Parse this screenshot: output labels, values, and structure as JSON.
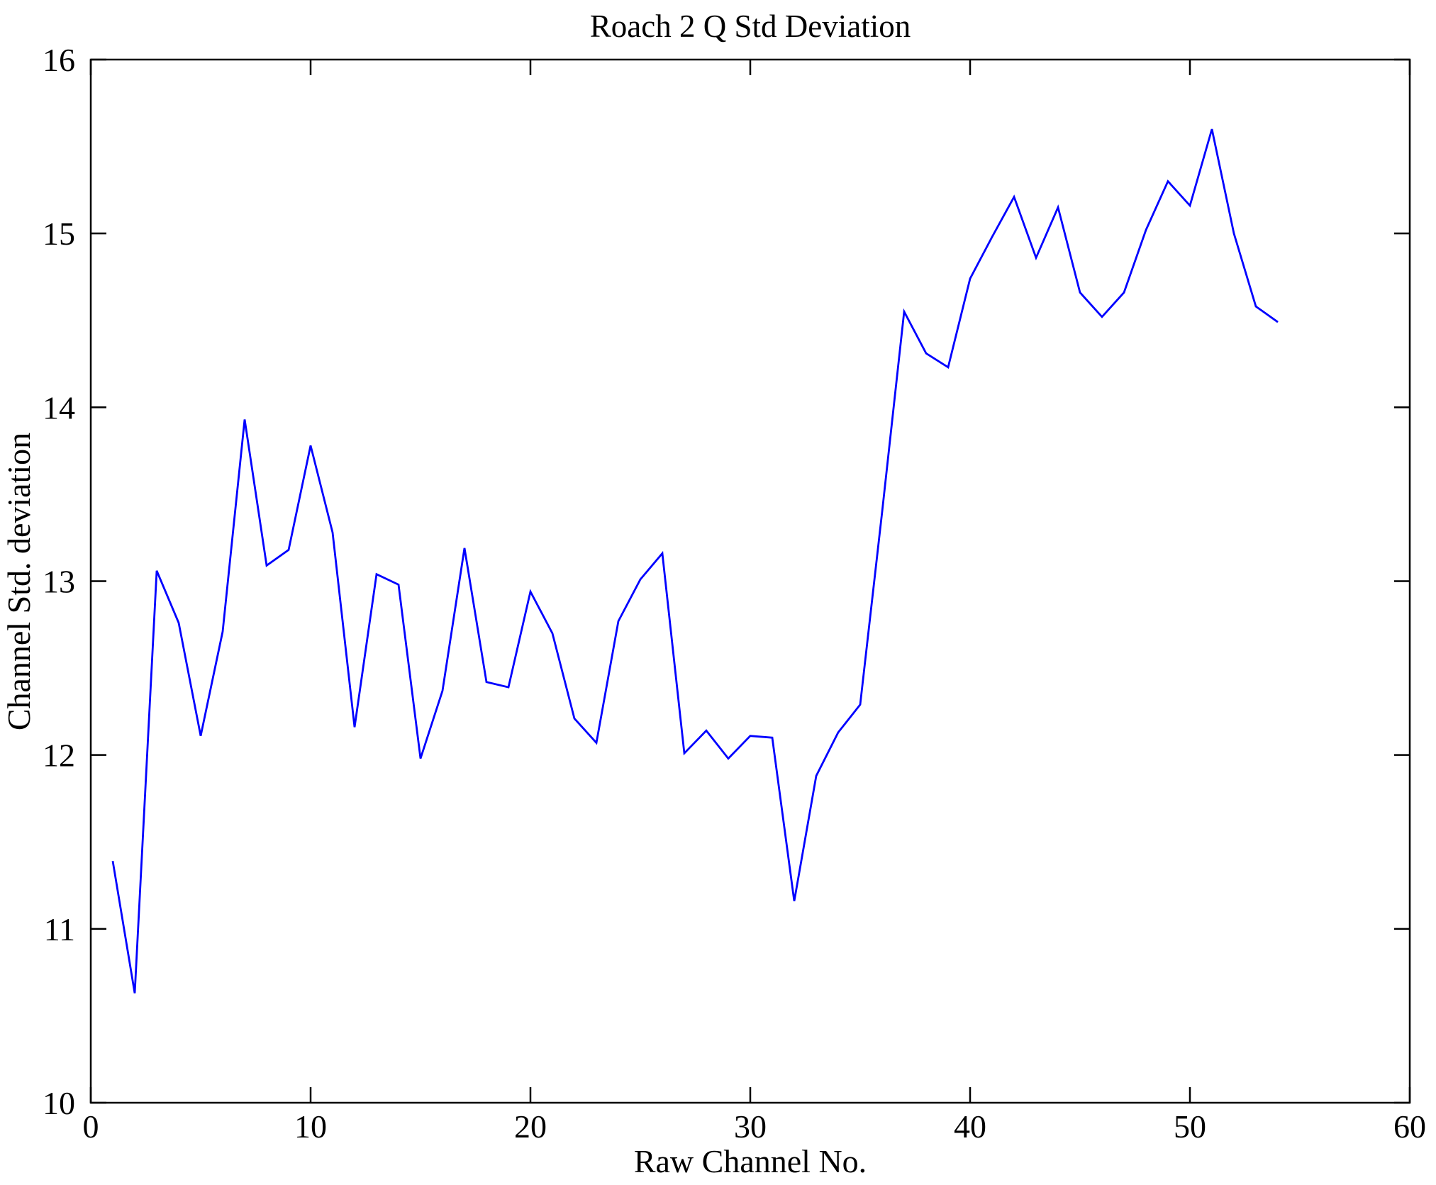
{
  "figure": {
    "background_color": "#ffffff",
    "axis_color": "#000000",
    "line_color": "#0000ff"
  },
  "chart_data": {
    "type": "line",
    "title": "Roach 2 Q Std Deviation",
    "xlabel": "Raw Channel No.",
    "ylabel": "Channel Std. deviation",
    "xlim": [
      0,
      60
    ],
    "ylim": [
      10,
      16
    ],
    "x_ticks": [
      "0",
      "10",
      "20",
      "30",
      "40",
      "50",
      "60"
    ],
    "x_tick_values": [
      0,
      10,
      20,
      30,
      40,
      50,
      60
    ],
    "y_ticks": [
      "10",
      "11",
      "12",
      "13",
      "14",
      "15",
      "16"
    ],
    "y_tick_values": [
      10,
      11,
      12,
      13,
      14,
      15,
      16
    ],
    "grid": false,
    "legend": "none",
    "series": [
      {
        "name": "channel-std-deviation",
        "color": "#0000ff",
        "x": [
          1,
          2,
          3,
          4,
          5,
          6,
          7,
          8,
          9,
          10,
          11,
          12,
          13,
          14,
          15,
          16,
          17,
          18,
          19,
          20,
          21,
          22,
          23,
          24,
          25,
          26,
          27,
          28,
          29,
          30,
          31,
          32,
          33,
          34,
          35,
          36,
          37,
          38,
          39,
          40,
          41,
          42,
          43,
          44,
          45,
          46,
          47,
          48,
          49,
          50,
          51,
          52,
          53,
          54
        ],
        "values": [
          11.39,
          10.63,
          13.06,
          12.76,
          12.11,
          12.71,
          13.93,
          13.09,
          13.18,
          13.78,
          13.28,
          12.16,
          13.04,
          12.98,
          11.98,
          12.37,
          13.19,
          12.42,
          12.39,
          12.94,
          12.7,
          12.21,
          12.07,
          12.77,
          13.01,
          13.16,
          12.01,
          12.14,
          11.98,
          12.11,
          12.1,
          11.16,
          11.88,
          12.13,
          12.29,
          13.4,
          14.55,
          14.31,
          14.23,
          14.74,
          14.98,
          15.21,
          14.86,
          15.15,
          14.66,
          14.52,
          14.66,
          15.02,
          15.3,
          15.16,
          15.6,
          15.0,
          14.58,
          14.49
        ]
      }
    ]
  }
}
